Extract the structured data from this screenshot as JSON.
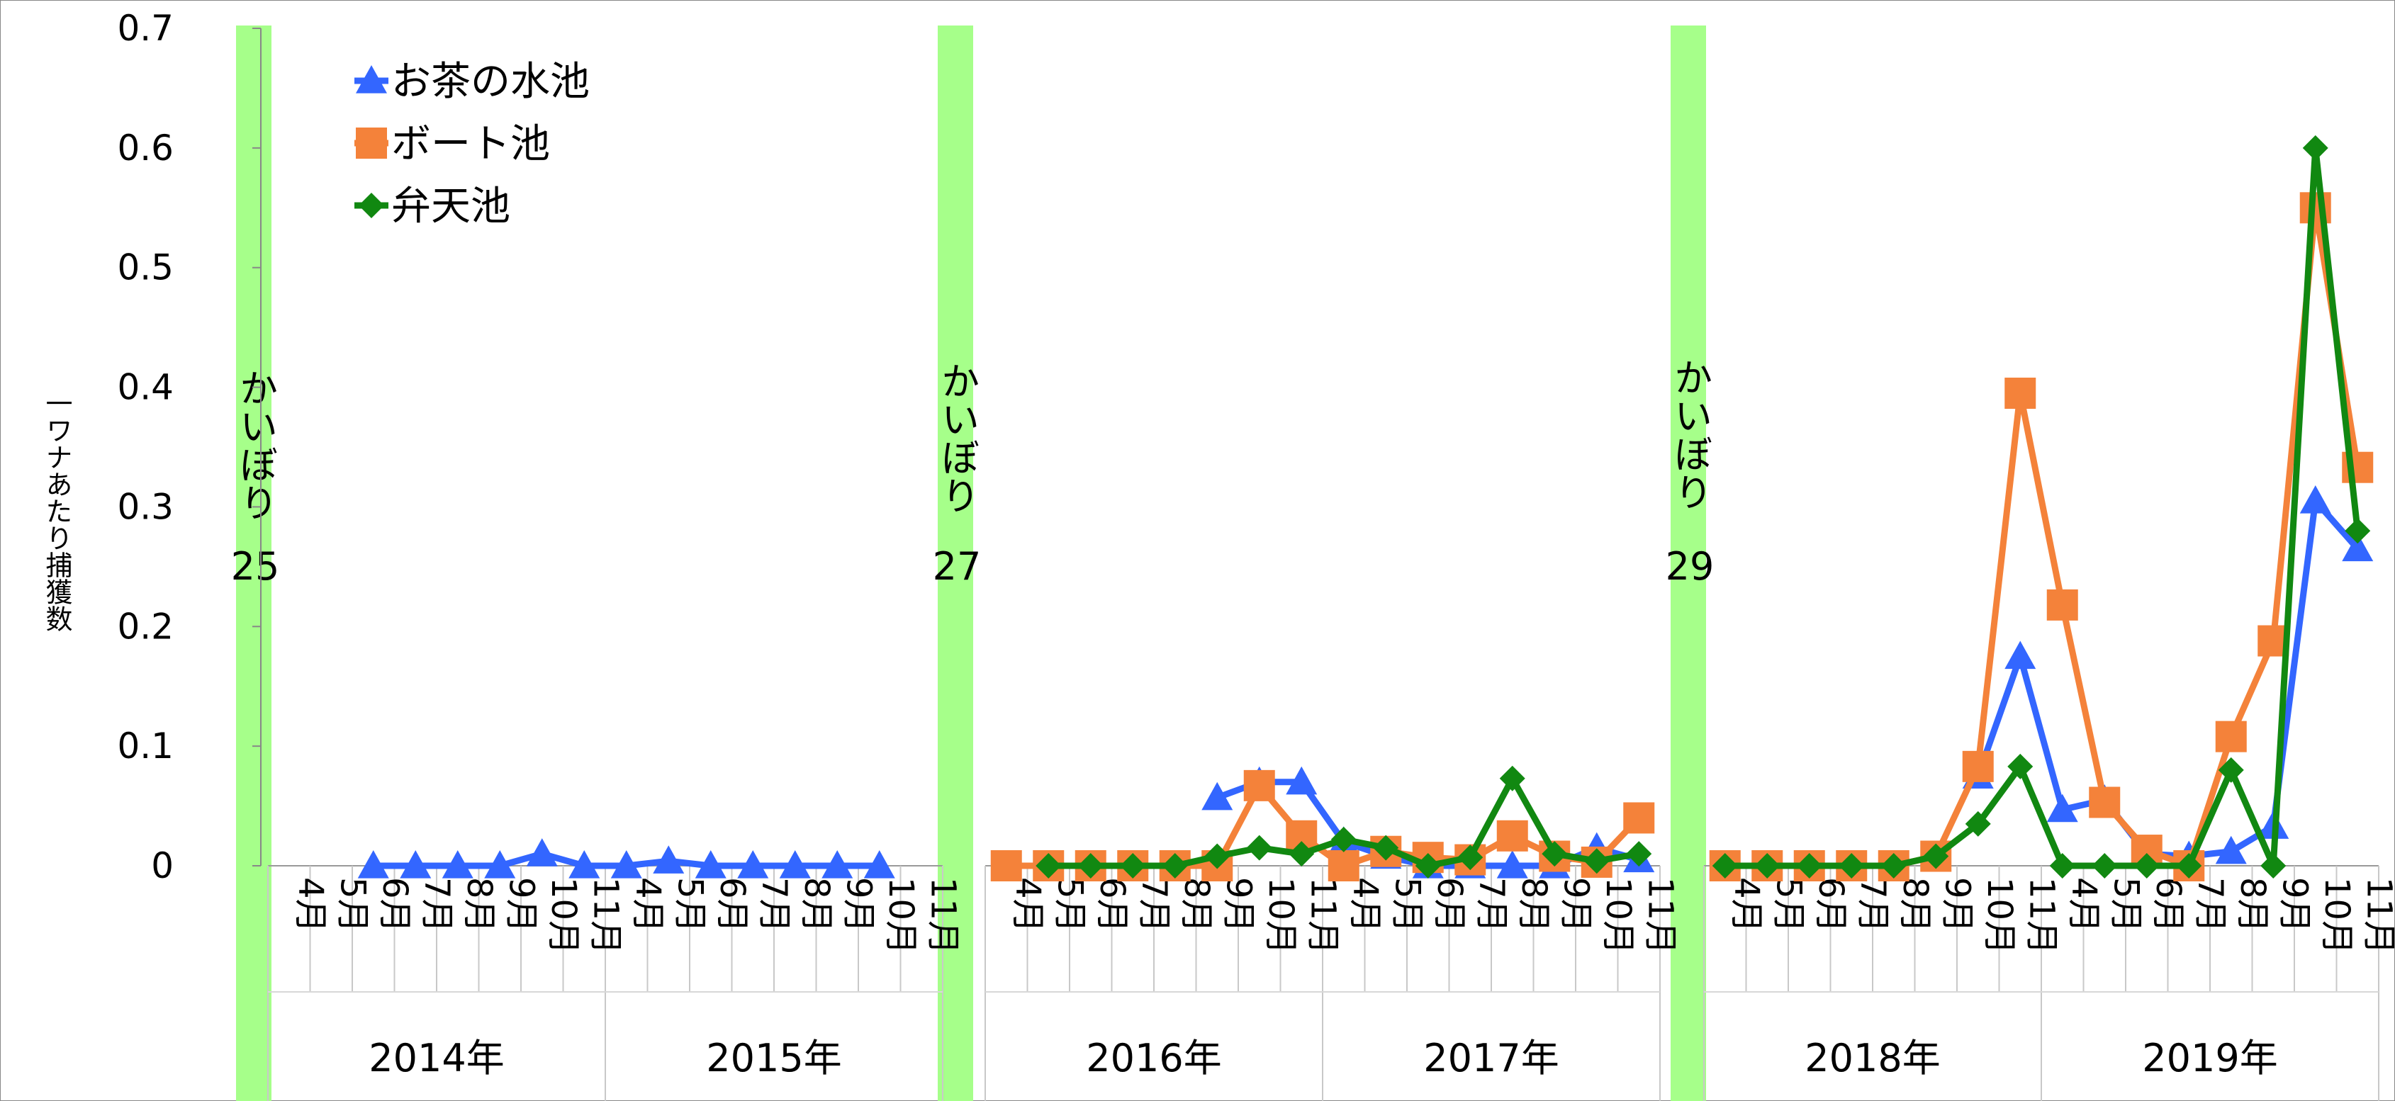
{
  "chart_data": {
    "type": "line",
    "ylabel": "一ワナあたり捕獲数",
    "ylim": [
      0,
      0.7
    ],
    "yticks": [
      "0",
      "0.1",
      "0.2",
      "0.3",
      "0.4",
      "0.5",
      "0.6",
      "0.7"
    ],
    "grid": false,
    "legend_position": "top-left",
    "month_labels": [
      "4月",
      "5月",
      "6月",
      "7月",
      "8月",
      "9月",
      "10月",
      "11月",
      "4月",
      "5月",
      "6月",
      "7月",
      "8月",
      "9月",
      "10月",
      "11月",
      "4月",
      "5月",
      "6月",
      "7月",
      "8月",
      "9月",
      "10月",
      "11月",
      "4月",
      "5月",
      "6月",
      "7月",
      "8月",
      "9月",
      "10月",
      "11月",
      "4月",
      "5月",
      "6月",
      "7月",
      "8月",
      "9月",
      "10月",
      "11月",
      "4月",
      "5月",
      "6月",
      "7月",
      "8月",
      "9月",
      "10月",
      "11月"
    ],
    "year_labels": [
      "2014年",
      "2015年",
      "2016年",
      "2017年",
      "2018年",
      "2019年"
    ],
    "kaibori": [
      {
        "label": "かいぼり",
        "number": "25"
      },
      {
        "label": "かいぼり",
        "number": "27"
      },
      {
        "label": "かいぼり",
        "number": "29"
      }
    ],
    "series": [
      {
        "name": "お茶の水池",
        "color": "#3366FF",
        "marker": "triangle",
        "values": [
          null,
          null,
          0,
          0,
          0,
          0,
          0.01,
          0,
          0,
          0.004,
          0,
          0,
          0,
          0,
          0,
          null,
          null,
          null,
          null,
          null,
          null,
          0.057,
          0.07,
          0.07,
          0.02,
          0.008,
          0,
          0,
          0,
          0,
          0.015,
          0.005,
          null,
          null,
          null,
          null,
          null,
          null,
          0.075,
          0.175,
          0.047,
          0.055,
          0.01,
          0.008,
          0.012,
          0.033,
          0.305,
          0.265
        ]
      },
      {
        "name": "ボート池",
        "color": "#F4823A",
        "marker": "square",
        "values": [
          null,
          null,
          null,
          null,
          null,
          null,
          null,
          null,
          null,
          null,
          null,
          null,
          null,
          null,
          null,
          null,
          0,
          0,
          0,
          0,
          0,
          0,
          0.067,
          0.025,
          0,
          0.012,
          0.007,
          0.005,
          0.025,
          0.008,
          0.003,
          0.04,
          0,
          0,
          0,
          0,
          0,
          0.008,
          0.083,
          0.395,
          0.218,
          0.053,
          0.013,
          0,
          0.108,
          0.188,
          0.55,
          0.333
        ]
      },
      {
        "name": "弁天池",
        "color": "#118811",
        "marker": "diamond",
        "values": [
          null,
          null,
          null,
          null,
          null,
          null,
          null,
          null,
          null,
          null,
          null,
          null,
          null,
          null,
          null,
          null,
          null,
          0,
          0,
          0,
          0,
          0.008,
          0.015,
          0.01,
          0.022,
          0.015,
          0,
          0.007,
          0.073,
          0.01,
          0.004,
          0.01,
          0,
          0,
          0,
          0,
          0,
          0.008,
          0.035,
          0.083,
          0,
          0,
          0,
          0,
          0.08,
          0,
          0.6,
          0.28
        ]
      }
    ]
  }
}
